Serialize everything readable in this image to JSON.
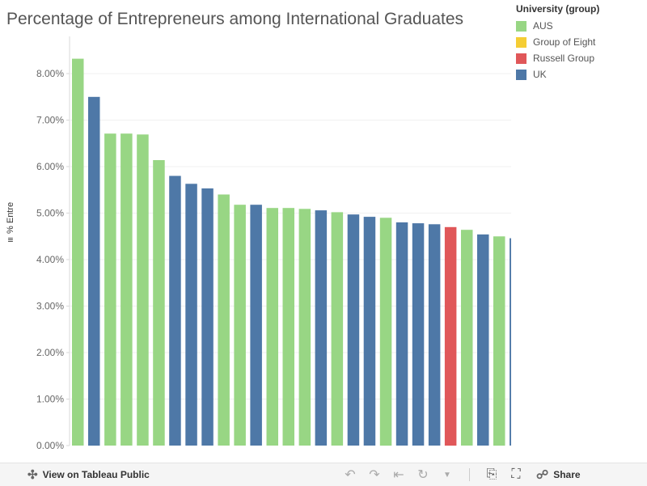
{
  "title": "Percentage of Entrepreneurs among International Graduates",
  "legend": {
    "title": "University (group)",
    "items": [
      {
        "label": "AUS",
        "color": "#98d684"
      },
      {
        "label": "Group of Eight",
        "color": "#f5cd34"
      },
      {
        "label": "Russell Group",
        "color": "#e05759"
      },
      {
        "label": "UK",
        "color": "#4e78a7"
      }
    ]
  },
  "toolbar": {
    "view_label": "View on Tableau Public",
    "share_label": "Share"
  },
  "chart_data": {
    "type": "bar",
    "ylabel": "% Entre",
    "yticks": [
      "0.00%",
      "1.00%",
      "2.00%",
      "3.00%",
      "4.00%",
      "5.00%",
      "6.00%",
      "7.00%",
      "8.00%"
    ],
    "ylim": [
      0,
      8.5
    ],
    "values": [
      8.32,
      7.5,
      6.71,
      6.71,
      6.69,
      6.14,
      5.8,
      5.63,
      5.53,
      5.4,
      5.18,
      5.18,
      5.11,
      5.11,
      5.09,
      5.06,
      5.02,
      4.97,
      4.92,
      4.9,
      4.8,
      4.78,
      4.76,
      4.7,
      4.64,
      4.54,
      4.5,
      4.46
    ],
    "groups": [
      "AUS",
      "UK",
      "AUS",
      "AUS",
      "AUS",
      "AUS",
      "UK",
      "UK",
      "UK",
      "AUS",
      "AUS",
      "UK",
      "AUS",
      "AUS",
      "AUS",
      "UK",
      "AUS",
      "UK",
      "UK",
      "AUS",
      "UK",
      "UK",
      "UK",
      "Russell Group",
      "AUS",
      "UK",
      "AUS",
      "UK"
    ],
    "colors": {
      "AUS": "#98d684",
      "Group of Eight": "#f5cd34",
      "Russell Group": "#e05759",
      "UK": "#4e78a7"
    },
    "grid": true,
    "legend_position": "right"
  }
}
